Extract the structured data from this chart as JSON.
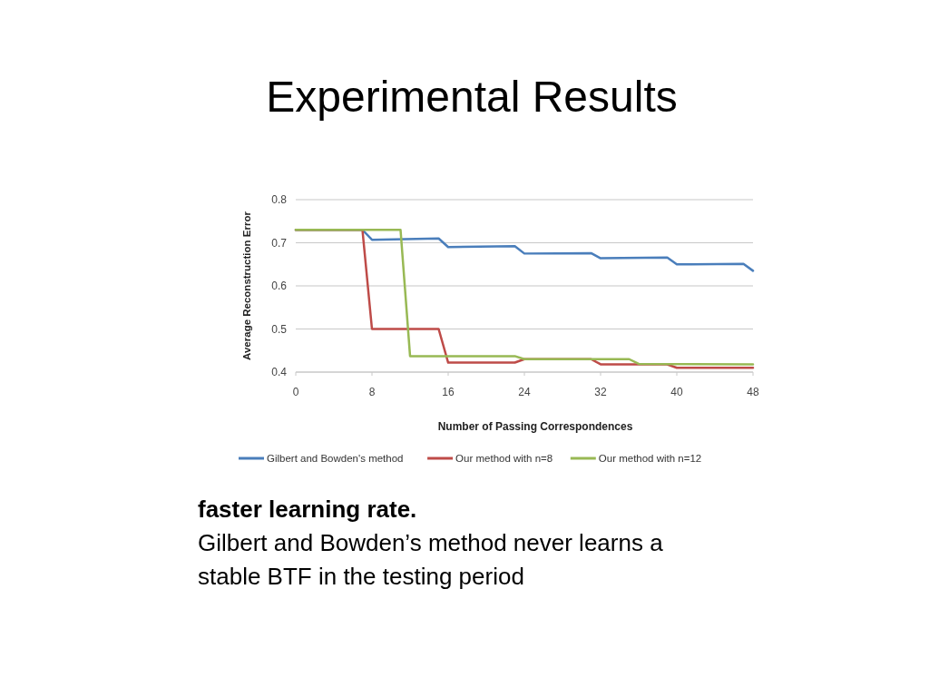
{
  "chart_data": {
    "type": "line",
    "title": "Experimental Results",
    "xlabel": "Number of Passing Correspondences",
    "ylabel": "Average Reconstruction Error",
    "xlim": [
      0,
      48
    ],
    "xticks": [
      0,
      8,
      16,
      24,
      32,
      40,
      48
    ],
    "ylim": [
      0.4,
      0.8
    ],
    "yticks": [
      0.4,
      0.5,
      0.6,
      0.7,
      0.8
    ],
    "grid": "y",
    "legend": "bottom",
    "marker": "none",
    "line_style": "solid",
    "series": [
      {
        "name": "Gilbert and Bowden's method",
        "color": "#4a7ebb",
        "x": [
          0,
          7,
          8,
          15,
          16,
          23,
          24,
          31,
          32,
          39,
          40,
          47,
          48
        ],
        "values": [
          0.73,
          0.73,
          0.707,
          0.71,
          0.69,
          0.692,
          0.675,
          0.676,
          0.664,
          0.666,
          0.65,
          0.651,
          0.635
        ]
      },
      {
        "name": "Our method with n=8",
        "color": "#be4b48",
        "x": [
          0,
          7,
          8,
          15,
          16,
          23,
          24,
          31,
          32,
          39,
          40,
          48
        ],
        "values": [
          0.73,
          0.73,
          0.5,
          0.5,
          0.422,
          0.422,
          0.43,
          0.43,
          0.418,
          0.418,
          0.41,
          0.41
        ]
      },
      {
        "name": "Our method with n=12",
        "color": "#98b954",
        "x": [
          0,
          11,
          12,
          23,
          24,
          35,
          36,
          48
        ],
        "values": [
          0.73,
          0.73,
          0.437,
          0.437,
          0.43,
          0.43,
          0.419,
          0.418
        ]
      }
    ],
    "annotations": [
      "faster learning rate.",
      "Gilbert and Bowden’s method never learns a stable BTF in the testing period"
    ]
  }
}
